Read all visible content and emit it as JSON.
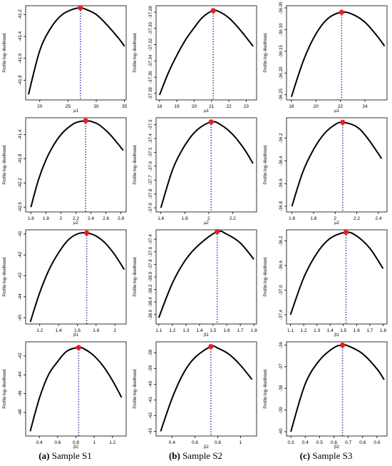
{
  "colors": {
    "curve": "#000000",
    "vline": "#1a1aa8",
    "max_point": "#ee1c1c",
    "axes": "#000000"
  },
  "captions": [
    {
      "letter": "(a)",
      "text": " Sample S1"
    },
    {
      "letter": "(b)",
      "text": " Sample S2"
    },
    {
      "letter": "(c)",
      "text": " Sample S3"
    }
  ],
  "chart_data": [
    {
      "type": "line",
      "sample": "S1",
      "xlabel": "μ1",
      "ylabel": "Profile log−likelihood",
      "xlim": [
        17.5,
        35.3
      ],
      "ylim": [
        -41.98,
        -41.12
      ],
      "xticks": [
        20,
        25,
        30,
        35
      ],
      "yticks": [
        -41.2,
        -41.4,
        -41.6,
        -41.8
      ],
      "ytick_labels": [
        "-41.2",
        "-41.4",
        "-41.6",
        "-41.8"
      ],
      "curve": {
        "x": [
          18,
          20,
          22,
          24,
          26,
          27.2,
          28,
          30,
          32,
          34,
          35
        ],
        "y": [
          -41.93,
          -41.53,
          -41.32,
          -41.2,
          -41.15,
          -41.14,
          -41.15,
          -41.2,
          -41.3,
          -41.42,
          -41.49
        ]
      },
      "max": {
        "x": 27.2,
        "y": -41.14
      }
    },
    {
      "type": "line",
      "sample": "S2",
      "xlabel": "μ1",
      "ylabel": "Profile log−likelihood",
      "xlim": [
        17.8,
        23.6
      ],
      "ylim": [
        -37.388,
        -37.272
      ],
      "xticks": [
        18,
        19,
        20,
        21,
        22,
        23
      ],
      "yticks": [
        -37.28,
        -37.3,
        -37.32,
        -37.34,
        -37.36,
        -37.38
      ],
      "ytick_labels": [
        "-37.28",
        "-37.30",
        "-37.32",
        "-37.34",
        "-37.36",
        "-37.38"
      ],
      "curve": {
        "x": [
          18,
          18.5,
          19,
          19.5,
          20,
          20.5,
          21.1,
          21.5,
          22,
          22.5,
          23,
          23.4
        ],
        "y": [
          -37.382,
          -37.355,
          -37.333,
          -37.314,
          -37.299,
          -37.286,
          -37.278,
          -37.28,
          -37.287,
          -37.298,
          -37.311,
          -37.322
        ]
      },
      "max": {
        "x": 21.1,
        "y": -37.278
      }
    },
    {
      "type": "line",
      "sample": "S3",
      "xlabel": "μ1",
      "ylabel": "Profile log−likelihood",
      "xlim": [
        17.6,
        25.8
      ],
      "ylim": [
        -36.262,
        -36.045
      ],
      "xticks": [
        18,
        20,
        22,
        24
      ],
      "yticks": [
        -36.05,
        -36.1,
        -36.15,
        -36.2,
        -36.25
      ],
      "ytick_labels": [
        "-36.05",
        "-36.10",
        "-36.15",
        "-36.20",
        "-36.25"
      ],
      "curve": {
        "x": [
          18,
          19,
          20,
          21,
          22.1,
          23,
          24,
          25,
          25.6
        ],
        "y": [
          -36.255,
          -36.17,
          -36.11,
          -36.074,
          -36.06,
          -36.065,
          -36.083,
          -36.115,
          -36.138
        ]
      },
      "max": {
        "x": 22.1,
        "y": -36.06
      }
    },
    {
      "type": "line",
      "sample": "S1",
      "xlabel": "μ2",
      "ylabel": "Profile log−likelihood",
      "xlim": [
        1.53,
        2.87
      ],
      "ylim": [
        -42.68,
        -41.12
      ],
      "xticks": [
        1.6,
        1.8,
        2.0,
        2.2,
        2.4,
        2.6,
        2.8
      ],
      "yticks": [
        -41.4,
        -41.8,
        -42.2,
        -42.6
      ],
      "ytick_labels": [
        "-41.4",
        "-41.8",
        "-42.2",
        "-42.6"
      ],
      "curve": {
        "x": [
          1.6,
          1.7,
          1.8,
          1.9,
          2.0,
          2.1,
          2.2,
          2.33,
          2.4,
          2.5,
          2.6,
          2.7,
          2.83
        ],
        "y": [
          -42.6,
          -42.15,
          -41.82,
          -41.58,
          -41.4,
          -41.28,
          -41.2,
          -41.17,
          -41.18,
          -41.23,
          -41.33,
          -41.46,
          -41.66
        ]
      },
      "max": {
        "x": 2.33,
        "y": -41.17
      }
    },
    {
      "type": "line",
      "sample": "S2",
      "xlabel": "μ2",
      "ylabel": "Profile log−likelihood",
      "xlim": [
        1.56,
        2.4
      ],
      "ylim": [
        -37.93,
        -37.25
      ],
      "xticks": [
        1.6,
        1.8,
        2.0,
        2.2
      ],
      "yticks": [
        -37.3,
        -37.4,
        -37.5,
        -37.6,
        -37.7,
        -37.8,
        -37.9
      ],
      "ytick_labels": [
        "-37.3",
        "-37.4",
        "-37.5",
        "-37.6",
        "-37.7",
        "-37.8",
        "-37.9"
      ],
      "curve": {
        "x": [
          1.6,
          1.7,
          1.8,
          1.9,
          2.02,
          2.1,
          2.2,
          2.3,
          2.37
        ],
        "y": [
          -37.9,
          -37.62,
          -37.45,
          -37.34,
          -37.28,
          -37.3,
          -37.37,
          -37.48,
          -37.58
        ]
      },
      "max": {
        "x": 2.02,
        "y": -37.28
      }
    },
    {
      "type": "line",
      "sample": "S3",
      "xlabel": "μ2",
      "ylabel": "Profile log−likelihood",
      "xlim": [
        1.55,
        2.48
      ],
      "ylim": [
        -36.85,
        -36.02
      ],
      "xticks": [
        1.6,
        1.8,
        2.0,
        2.2,
        2.4
      ],
      "yticks": [
        -36.2,
        -36.4,
        -36.6,
        -36.8
      ],
      "ytick_labels": [
        "-36.2",
        "-36.4",
        "-36.6",
        "-36.8"
      ],
      "curve": {
        "x": [
          1.6,
          1.7,
          1.8,
          1.9,
          2.0,
          2.07,
          2.2,
          2.3,
          2.43
        ],
        "y": [
          -36.8,
          -36.5,
          -36.3,
          -36.16,
          -36.08,
          -36.06,
          -36.1,
          -36.2,
          -36.38
        ]
      },
      "max": {
        "x": 2.07,
        "y": -36.06
      }
    },
    {
      "type": "line",
      "sample": "S1",
      "xlabel": "β1",
      "ylabel": "Profile log−likelihood",
      "xlim": [
        1.05,
        2.12
      ],
      "ylim": [
        -45.3,
        -40.8
      ],
      "xticks": [
        1.2,
        1.4,
        1.6,
        1.8,
        2.0
      ],
      "yticks": [
        -41,
        -42,
        -43,
        -44,
        -45
      ],
      "ytick_labels": [
        "-41",
        "-42",
        "-43",
        "-44",
        "-45"
      ],
      "curve": {
        "x": [
          1.1,
          1.2,
          1.3,
          1.4,
          1.5,
          1.6,
          1.7,
          1.8,
          1.9,
          2.0,
          2.1
        ],
        "y": [
          -45.2,
          -43.8,
          -42.7,
          -41.9,
          -41.3,
          -41.0,
          -40.95,
          -41.1,
          -41.45,
          -42.0,
          -42.7
        ]
      },
      "max": {
        "x": 1.7,
        "y": -40.95
      }
    },
    {
      "type": "line",
      "sample": "S2",
      "xlabel": "β1",
      "ylabel": "Profile log−likelihood",
      "xlim": [
        1.08,
        1.82
      ],
      "ylim": [
        -38.75,
        -37.25
      ],
      "xticks": [
        1.1,
        1.2,
        1.3,
        1.4,
        1.5,
        1.6,
        1.7,
        1.8
      ],
      "yticks": [
        -37.4,
        -37.6,
        -37.8,
        -38.0,
        -38.2,
        -38.4,
        -38.6
      ],
      "ytick_labels": [
        "-37.4",
        "-37.6",
        "-37.8",
        "-38.0",
        "-38.2",
        "-38.4",
        "-38.6"
      ],
      "curve": {
        "x": [
          1.1,
          1.2,
          1.3,
          1.4,
          1.53,
          1.6,
          1.7,
          1.8
        ],
        "y": [
          -38.65,
          -38.1,
          -37.72,
          -37.48,
          -37.28,
          -37.32,
          -37.46,
          -37.72
        ]
      },
      "max": {
        "x": 1.53,
        "y": -37.28
      }
    },
    {
      "type": "line",
      "sample": "S3",
      "xlabel": "β1",
      "ylabel": "Profile log−likelihood",
      "xlim": [
        1.07,
        1.83
      ],
      "ylim": [
        -37.55,
        -36.02
      ],
      "xticks": [
        1.1,
        1.2,
        1.3,
        1.4,
        1.5,
        1.6,
        1.7,
        1.8
      ],
      "yticks": [
        -36.2,
        -36.6,
        -37.0,
        -37.4
      ],
      "ytick_labels": [
        "-36.2",
        "-36.6",
        "-37.0",
        "-37.4"
      ],
      "curve": {
        "x": [
          1.1,
          1.2,
          1.3,
          1.4,
          1.52,
          1.6,
          1.7,
          1.8
        ],
        "y": [
          -37.4,
          -36.8,
          -36.4,
          -36.16,
          -36.06,
          -36.12,
          -36.32,
          -36.65
        ]
      },
      "max": {
        "x": 1.52,
        "y": -36.06
      }
    },
    {
      "type": "line",
      "sample": "S1",
      "xlabel": "β2",
      "ylabel": "Profile log−likelihood",
      "xlim": [
        0.25,
        1.35
      ],
      "ylim": [
        -50.5,
        -40.5
      ],
      "xticks": [
        0.4,
        0.6,
        0.8,
        1.0,
        1.2
      ],
      "yticks": [
        -42,
        -44,
        -46,
        -48
      ],
      "ytick_labels": [
        "-42",
        "-44",
        "-46",
        "-48"
      ],
      "curve": {
        "x": [
          0.3,
          0.4,
          0.5,
          0.6,
          0.7,
          0.83,
          0.9,
          1.0,
          1.1,
          1.2,
          1.3
        ],
        "y": [
          -50.0,
          -46.5,
          -44.0,
          -42.6,
          -41.5,
          -41.1,
          -41.3,
          -42.0,
          -43.1,
          -44.6,
          -46.4
        ]
      },
      "max": {
        "x": 0.83,
        "y": -41.1
      }
    },
    {
      "type": "line",
      "sample": "S2",
      "xlabel": "β2",
      "ylabel": "Profile log−likelihood",
      "xlim": [
        0.26,
        1.14
      ],
      "ylim": [
        -43.3,
        -37.3
      ],
      "xticks": [
        0.4,
        0.6,
        0.8,
        1.0
      ],
      "yticks": [
        -38,
        -39,
        -40,
        -41,
        -42,
        -43
      ],
      "ytick_labels": [
        "-38",
        "-39",
        "-40",
        "-41",
        "-42",
        "-43"
      ],
      "curve": {
        "x": [
          0.3,
          0.4,
          0.5,
          0.6,
          0.74,
          0.8,
          0.9,
          1.0,
          1.1
        ],
        "y": [
          -43.0,
          -40.9,
          -39.3,
          -38.3,
          -37.6,
          -37.7,
          -38.1,
          -38.8,
          -39.7
        ]
      },
      "max": {
        "x": 0.74,
        "y": -37.6
      }
    },
    {
      "type": "line",
      "sample": "S3",
      "xlabel": "β2",
      "ylabel": "Profile log−likelihood",
      "xlim": [
        0.27,
        0.97
      ],
      "ylim": [
        -40.2,
        -35.85
      ],
      "xticks": [
        0.3,
        0.4,
        0.5,
        0.6,
        0.7,
        0.8,
        0.9
      ],
      "yticks": [
        -36,
        -37,
        -38,
        -39,
        -40
      ],
      "ytick_labels": [
        "-36",
        "-37",
        "-38",
        "-39",
        "-40"
      ],
      "curve": {
        "x": [
          0.3,
          0.4,
          0.5,
          0.6,
          0.66,
          0.7,
          0.8,
          0.9,
          0.95
        ],
        "y": [
          -40.0,
          -37.8,
          -36.7,
          -36.12,
          -36.0,
          -36.04,
          -36.4,
          -37.1,
          -37.6
        ]
      },
      "max": {
        "x": 0.66,
        "y": -36.0
      }
    }
  ]
}
